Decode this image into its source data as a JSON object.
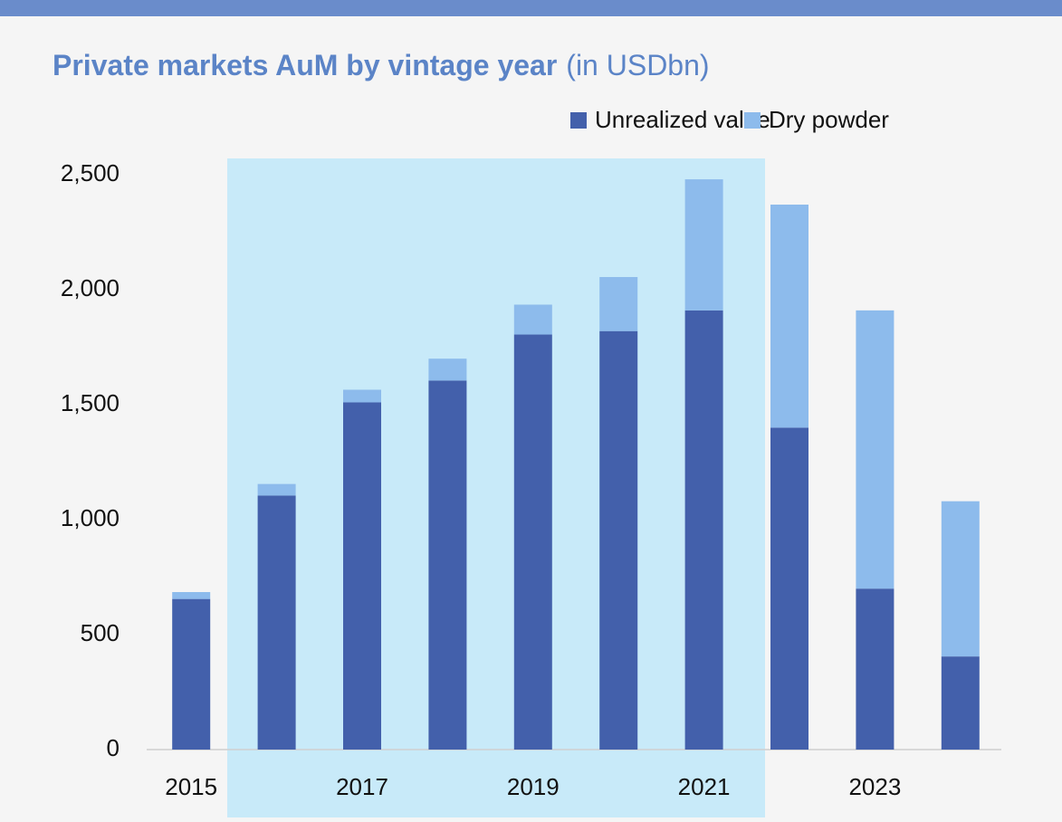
{
  "chart_data": {
    "type": "stacked_bar",
    "title": "Private markets AuM by vintage year",
    "subtitle": "(in USDbn)",
    "categories": [
      "2015",
      null,
      "2017",
      null,
      "2019",
      null,
      "2021",
      null,
      "2023",
      null
    ],
    "series": [
      {
        "name": "Unrealized value",
        "color": "#4360ab",
        "values": [
          655,
          1105,
          1510,
          1605,
          1805,
          1820,
          1910,
          1400,
          700,
          405
        ]
      },
      {
        "name": "Dry powder",
        "color": "#8dbbec",
        "values": [
          30,
          50,
          55,
          95,
          130,
          235,
          570,
          970,
          1210,
          675
        ]
      }
    ],
    "ylim": [
      0,
      2500
    ],
    "yticks": [
      0,
      500,
      {
        "value": 1000,
        "label": "1,000"
      },
      {
        "value": 1500,
        "label": "1,500"
      },
      {
        "value": 2000,
        "label": "2,000"
      },
      {
        "value": 2500,
        "label": "2,500"
      }
    ],
    "grid": false,
    "legend": "top-right"
  }
}
